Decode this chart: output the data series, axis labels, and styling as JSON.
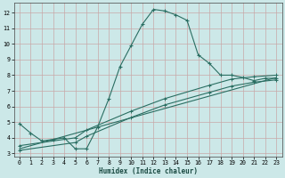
{
  "xlabel": "Humidex (Indice chaleur)",
  "bg_color": "#cce8e8",
  "grid_color": "#c8a8a8",
  "line_color": "#2a6e62",
  "xlim": [
    -0.5,
    23.5
  ],
  "ylim": [
    2.8,
    12.6
  ],
  "yticks": [
    3,
    4,
    5,
    6,
    7,
    8,
    9,
    10,
    11,
    12
  ],
  "xticks": [
    0,
    1,
    2,
    3,
    4,
    5,
    6,
    7,
    8,
    9,
    10,
    11,
    12,
    13,
    14,
    15,
    16,
    17,
    18,
    19,
    20,
    21,
    22,
    23
  ],
  "main_curve_x": [
    0,
    1,
    2,
    3,
    4,
    5,
    6,
    7,
    8,
    9,
    10,
    11,
    12,
    13,
    14,
    15,
    16,
    17,
    18,
    19,
    20,
    21,
    22,
    23
  ],
  "main_curve_y": [
    4.9,
    4.3,
    3.8,
    3.9,
    4.0,
    3.3,
    3.3,
    4.7,
    6.5,
    8.55,
    9.9,
    11.25,
    12.2,
    12.1,
    11.85,
    11.5,
    9.3,
    8.75,
    8.0,
    8.0,
    7.85,
    7.65,
    7.8,
    7.8
  ],
  "line2_x": [
    0,
    5,
    6,
    10,
    13,
    17,
    19,
    21,
    23
  ],
  "line2_y": [
    3.5,
    4.0,
    4.5,
    5.7,
    6.5,
    7.35,
    7.75,
    7.9,
    8.0
  ],
  "line3_x": [
    0,
    5,
    6,
    10,
    13,
    17,
    19,
    21,
    23
  ],
  "line3_y": [
    3.2,
    3.7,
    4.1,
    5.3,
    6.1,
    6.9,
    7.3,
    7.55,
    7.7
  ],
  "line4_x": [
    0,
    23
  ],
  "line4_y": [
    3.3,
    7.85
  ]
}
